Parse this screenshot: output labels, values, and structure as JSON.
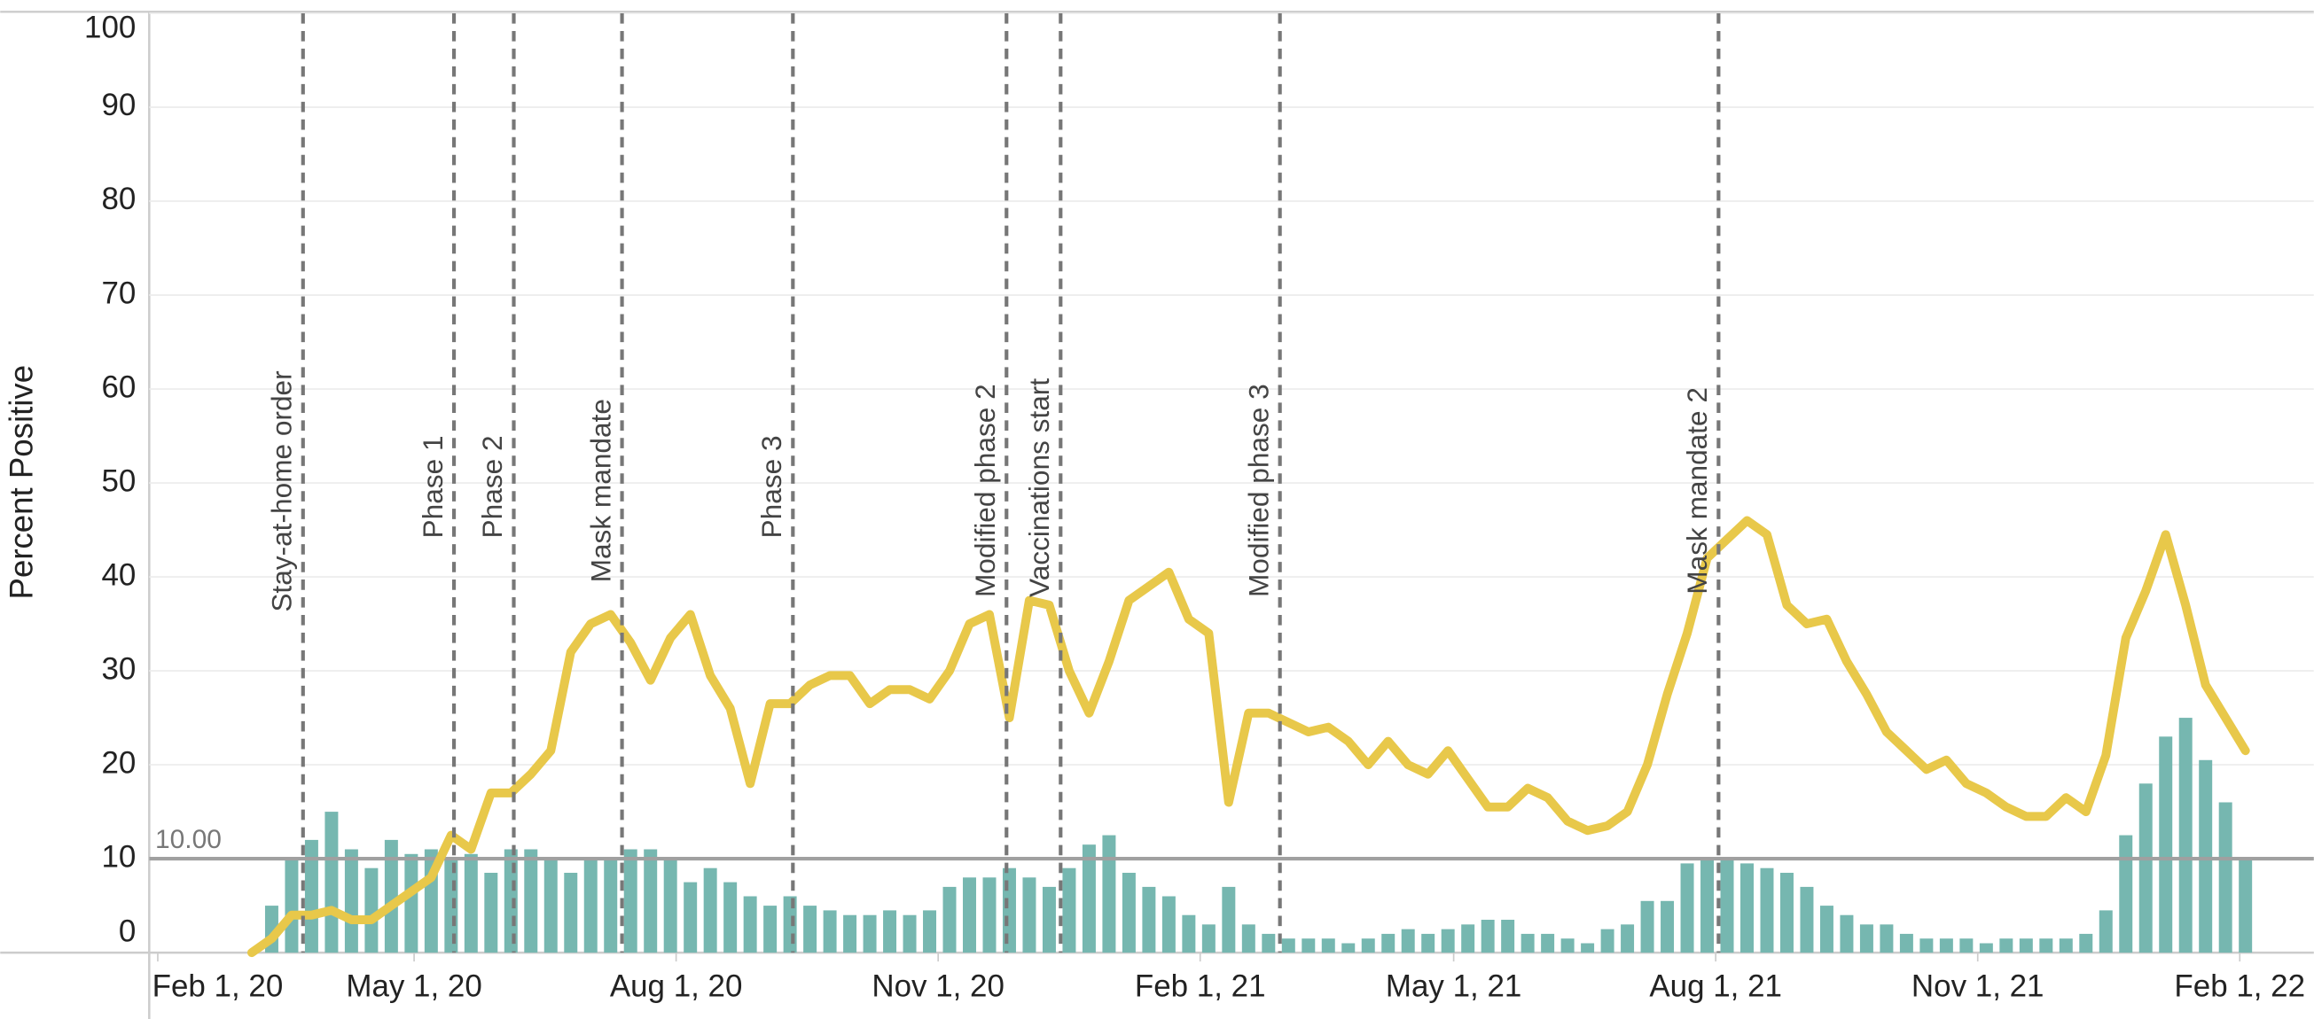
{
  "chart_data": {
    "type": "combo",
    "y_label": "Percent Positive",
    "ylim": [
      0,
      100
    ],
    "yticks": [
      0,
      10,
      20,
      30,
      40,
      50,
      60,
      70,
      80,
      90,
      100
    ],
    "grid": true,
    "xlim": [
      "2020-01-29",
      "2022-02-27"
    ],
    "xticks": [
      {
        "value": "2020-02-01",
        "label": "Feb 1, 20"
      },
      {
        "value": "2020-05-01",
        "label": "May 1, 20"
      },
      {
        "value": "2020-08-01",
        "label": "Aug 1, 20"
      },
      {
        "value": "2020-11-01",
        "label": "Nov 1, 20"
      },
      {
        "value": "2021-02-01",
        "label": "Feb 1, 21"
      },
      {
        "value": "2021-05-01",
        "label": "May 1, 21"
      },
      {
        "value": "2021-08-01",
        "label": "Aug 1, 21"
      },
      {
        "value": "2021-11-01",
        "label": "Nov 1, 21"
      },
      {
        "value": "2022-02-01",
        "label": "Feb 1, 22"
      }
    ],
    "x": [
      "2020-03-05",
      "2020-03-12",
      "2020-03-19",
      "2020-03-26",
      "2020-04-02",
      "2020-04-09",
      "2020-04-16",
      "2020-04-23",
      "2020-04-30",
      "2020-05-07",
      "2020-05-14",
      "2020-05-21",
      "2020-05-28",
      "2020-06-04",
      "2020-06-11",
      "2020-06-18",
      "2020-06-25",
      "2020-07-02",
      "2020-07-09",
      "2020-07-16",
      "2020-07-23",
      "2020-07-30",
      "2020-08-06",
      "2020-08-13",
      "2020-08-20",
      "2020-08-27",
      "2020-09-03",
      "2020-09-10",
      "2020-09-17",
      "2020-09-24",
      "2020-10-01",
      "2020-10-08",
      "2020-10-15",
      "2020-10-22",
      "2020-10-29",
      "2020-11-05",
      "2020-11-12",
      "2020-11-19",
      "2020-11-26",
      "2020-12-03",
      "2020-12-10",
      "2020-12-17",
      "2020-12-24",
      "2020-12-31",
      "2021-01-07",
      "2021-01-14",
      "2021-01-21",
      "2021-01-28",
      "2021-02-04",
      "2021-02-11",
      "2021-02-18",
      "2021-02-25",
      "2021-03-04",
      "2021-03-11",
      "2021-03-18",
      "2021-03-25",
      "2021-04-01",
      "2021-04-08",
      "2021-04-15",
      "2021-04-22",
      "2021-04-29",
      "2021-05-06",
      "2021-05-13",
      "2021-05-20",
      "2021-05-27",
      "2021-06-03",
      "2021-06-10",
      "2021-06-17",
      "2021-06-24",
      "2021-07-01",
      "2021-07-08",
      "2021-07-15",
      "2021-07-22",
      "2021-07-29",
      "2021-08-05",
      "2021-08-12",
      "2021-08-19",
      "2021-08-26",
      "2021-09-02",
      "2021-09-09",
      "2021-09-16",
      "2021-09-23",
      "2021-09-30",
      "2021-10-07",
      "2021-10-14",
      "2021-10-21",
      "2021-10-28",
      "2021-11-04",
      "2021-11-11",
      "2021-11-18",
      "2021-11-25",
      "2021-12-02",
      "2021-12-09",
      "2021-12-16",
      "2021-12-23",
      "2021-12-30",
      "2022-01-06",
      "2022-01-13",
      "2022-01-20",
      "2022-01-27",
      "2022-02-03"
    ],
    "series": [
      {
        "type": "bar",
        "color": "#76b7b0",
        "values": [
          null,
          5,
          10,
          12,
          15,
          11,
          9,
          12,
          10.5,
          11,
          10,
          10.5,
          8.5,
          11,
          11,
          10,
          8.5,
          10,
          10,
          11,
          11,
          10,
          7.5,
          9,
          7.5,
          6,
          5,
          6,
          5,
          4.5,
          4,
          4,
          4.5,
          4,
          4.5,
          7,
          8,
          8,
          9,
          8,
          7,
          9,
          11.5,
          12.5,
          8.5,
          7,
          6,
          4,
          3,
          7,
          3,
          2,
          1.5,
          1.5,
          1.5,
          1,
          1.5,
          2,
          2.5,
          2,
          2.5,
          3,
          3.5,
          3.5,
          2,
          2,
          1.5,
          1,
          2.5,
          3,
          5.5,
          5.5,
          9.5,
          10,
          10,
          9.5,
          9,
          8.5,
          7,
          5,
          4,
          3,
          3,
          2,
          1.5,
          1.5,
          1.5,
          1,
          1.5,
          1.5,
          1.5,
          1.5,
          2,
          4.5,
          12.5,
          18,
          23,
          25,
          20.5,
          16,
          10
        ]
      },
      {
        "type": "line",
        "color": "#e8c84a",
        "values": [
          0,
          1.5,
          4,
          4,
          4.5,
          3.5,
          3.5,
          5,
          6.5,
          8,
          12.5,
          11,
          17,
          17,
          19,
          21.5,
          32,
          35,
          36,
          33,
          29,
          33.5,
          36,
          29.5,
          26,
          18,
          26.5,
          26.5,
          28.5,
          29.5,
          29.5,
          26.5,
          28,
          28,
          27,
          30,
          35,
          36,
          25,
          37.5,
          37,
          30,
          25.5,
          31,
          37.5,
          39,
          40.5,
          35.5,
          34,
          16,
          25.5,
          25.5,
          24.5,
          23.5,
          24,
          22.5,
          20,
          22.5,
          20,
          19,
          21.5,
          18.5,
          15.5,
          15.5,
          17.5,
          16.5,
          14,
          13,
          13.5,
          15,
          20,
          27.5,
          34,
          42,
          44,
          46,
          44.5,
          37,
          35,
          35.5,
          31,
          27.5,
          23.5,
          21.5,
          19.5,
          20.5,
          18,
          17,
          15.5,
          14.5,
          14.5,
          16.5,
          15,
          21,
          33.5,
          38.5,
          44.5,
          37,
          28.5,
          25,
          21.5
        ]
      }
    ],
    "reference_line": {
      "value": 10,
      "label": "10.00"
    },
    "annotations": [
      {
        "label": "Stay-at-home order",
        "x": "2020-03-23"
      },
      {
        "label": "Phase 1",
        "x": "2020-05-15"
      },
      {
        "label": "Phase 2",
        "x": "2020-06-05"
      },
      {
        "label": "Mask mandate",
        "x": "2020-07-13"
      },
      {
        "label": "Phase 3",
        "x": "2020-09-11"
      },
      {
        "label": "Modified phase 2",
        "x": "2020-11-25"
      },
      {
        "label": "Vaccinations start",
        "x": "2020-12-14"
      },
      {
        "label": "Modified phase 3",
        "x": "2021-03-01"
      },
      {
        "label": "Mask mandate 2",
        "x": "2021-08-02"
      }
    ]
  }
}
